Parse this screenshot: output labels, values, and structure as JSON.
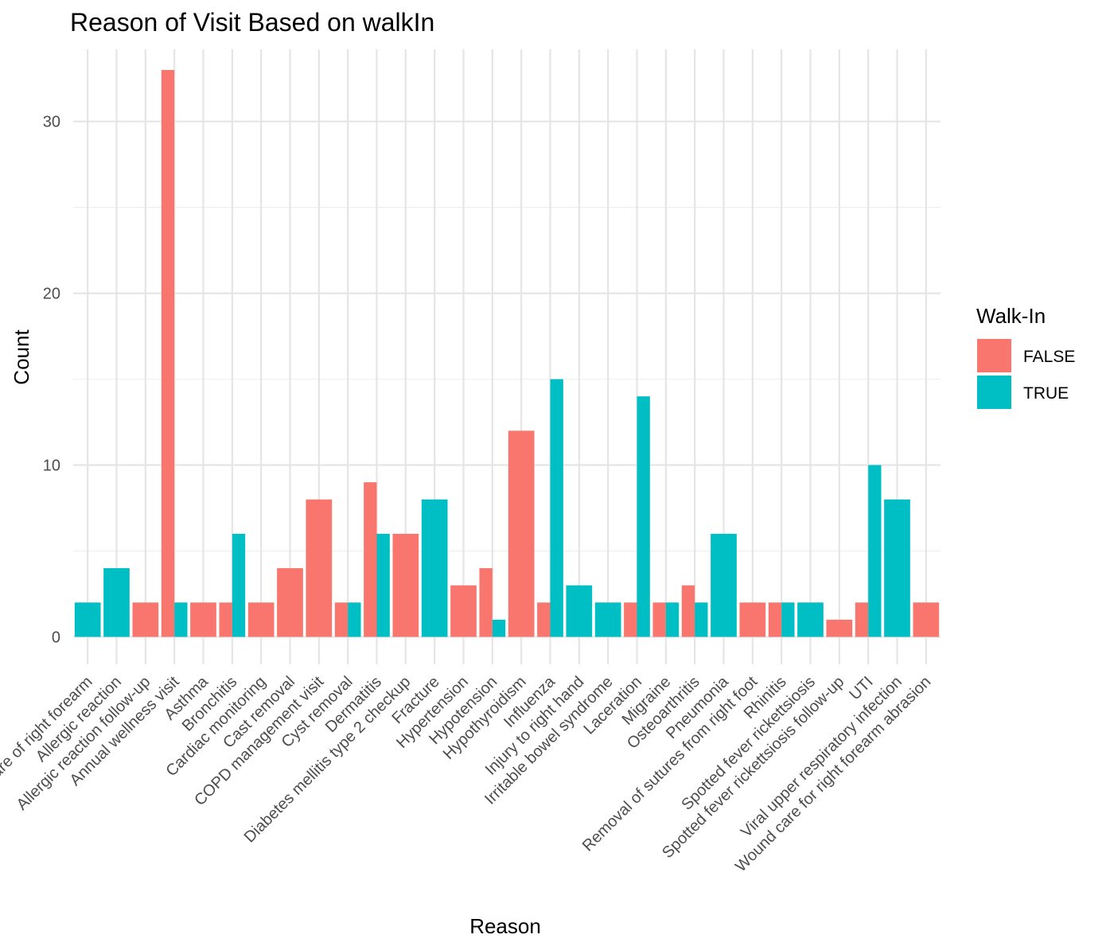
{
  "chart_data": {
    "type": "bar",
    "title": "Reason of Visit Based on walkIn",
    "xlabel": "Reason",
    "ylabel": "Count",
    "ylim": [
      -1.6,
      34.2
    ],
    "yticks": [
      0,
      10,
      20,
      30
    ],
    "grid": true,
    "legend": {
      "title": "Walk-In",
      "placement": "right",
      "entries": [
        {
          "name": "FALSE",
          "color": "#F8766D"
        },
        {
          "name": "TRUE",
          "color": "#00BFC4"
        }
      ]
    },
    "categories": [
      "Aftercare of right forearm",
      "Allergic reaction",
      "Allergic reaction follow-up",
      "Annual wellness visit",
      "Asthma",
      "Bronchitis",
      "Cardiac monitoring",
      "Cast removal",
      "COPD management visit",
      "Cyst removal",
      "Dermatitis",
      "Diabetes mellitis type 2 checkup",
      "Fracture",
      "Hypertension",
      "Hypotension",
      "Hypothyroidism",
      "Influenza",
      "Injury to right hand",
      "Irritable bowel syndrome",
      "Laceration",
      "Migraine",
      "Osteoarthritis",
      "Pneumonia",
      "Removal of sutures from right foot",
      "Rhinitis",
      "Spotted fever rickettsiosis",
      "Spotted fever rickettsiosis follow-up",
      "UTI",
      "Viral upper respiratory infection",
      "Wound care for right forearm abrasion"
    ],
    "series": [
      {
        "name": "FALSE",
        "color": "#F8766D",
        "values": [
          null,
          null,
          2,
          33,
          2,
          2,
          2,
          4,
          8,
          2,
          9,
          6,
          null,
          3,
          4,
          12,
          2,
          null,
          null,
          2,
          2,
          3,
          null,
          2,
          2,
          null,
          1,
          2,
          null,
          2
        ]
      },
      {
        "name": "TRUE",
        "color": "#00BFC4",
        "values": [
          2,
          4,
          null,
          2,
          null,
          6,
          null,
          null,
          null,
          2,
          6,
          null,
          8,
          null,
          1,
          null,
          15,
          3,
          2,
          14,
          2,
          2,
          6,
          null,
          2,
          2,
          null,
          10,
          8,
          null
        ]
      }
    ]
  }
}
